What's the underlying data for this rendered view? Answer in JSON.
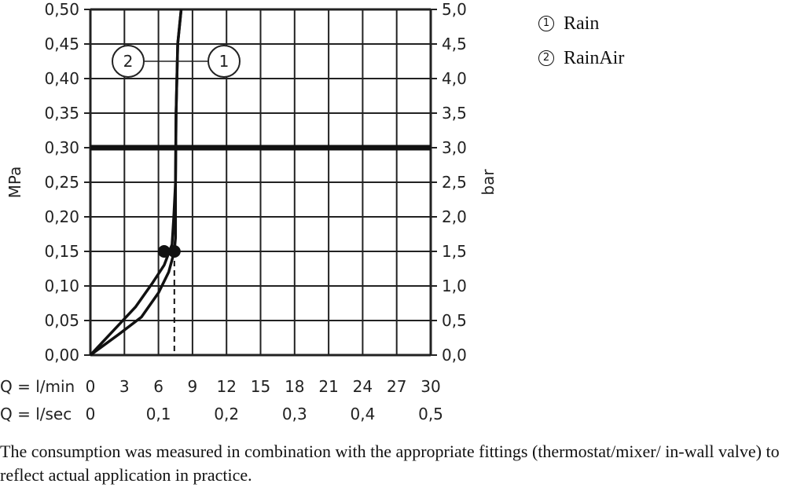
{
  "chart_data": {
    "type": "line",
    "xlabel": "Q = l/min",
    "xlabel_secondary": "Q = l/sec",
    "ylabel_left": "MPa",
    "ylabel_right": "bar",
    "xlim": [
      0,
      30
    ],
    "ylim": [
      0,
      0.5
    ],
    "x_ticks": [
      "0",
      "3",
      "6",
      "9",
      "12",
      "15",
      "18",
      "21",
      "24",
      "27",
      "30"
    ],
    "x_ticks_secondary": [
      {
        "value": 0,
        "label": "0"
      },
      {
        "value": 6,
        "label": "0,1"
      },
      {
        "value": 12,
        "label": "0,2"
      },
      {
        "value": 18,
        "label": "0,3"
      },
      {
        "value": 24,
        "label": "0,4"
      },
      {
        "value": 30,
        "label": "0,5"
      }
    ],
    "y_ticks_left": [
      "0,00",
      "0,05",
      "0,10",
      "0,15",
      "0,20",
      "0,25",
      "0,30",
      "0,35",
      "0,40",
      "0,45",
      "0,50"
    ],
    "y_ticks_right": [
      "0,0",
      "0,5",
      "1,0",
      "1,5",
      "2,0",
      "2,5",
      "3,0",
      "3,5",
      "4,0",
      "4,5",
      "5,0"
    ],
    "grid": true,
    "reference_line_y": 0.3,
    "series": [
      {
        "name": "Rain",
        "marker": "1",
        "x": [
          0,
          2.5,
          4.5,
          6.0,
          6.9,
          7.4,
          7.5,
          7.5,
          7.55,
          7.7,
          8.0
        ],
        "y": [
          0,
          0.03,
          0.055,
          0.09,
          0.12,
          0.15,
          0.17,
          0.25,
          0.35,
          0.45,
          0.5
        ]
      },
      {
        "name": "RainAir",
        "marker": "2",
        "x": [
          0,
          2.0,
          4.0,
          5.5,
          6.5,
          7.2,
          7.35,
          7.5,
          7.55,
          7.7,
          8.0
        ],
        "y": [
          0,
          0.035,
          0.07,
          0.105,
          0.13,
          0.16,
          0.2,
          0.25,
          0.35,
          0.45,
          0.5
        ]
      }
    ],
    "operating_points": [
      {
        "x": 6.5,
        "y": 0.15
      },
      {
        "x": 7.4,
        "y": 0.15
      }
    ],
    "dashed_drop_x": 7.4
  },
  "legend": [
    {
      "number": "1",
      "label": "Rain"
    },
    {
      "number": "2",
      "label": "RainAir"
    }
  ],
  "note": "The consumption was measured in combination with the appropriate fittings (thermostat/mixer/ in-wall valve) to reflect actual application in practice."
}
